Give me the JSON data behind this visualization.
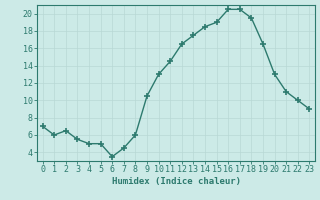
{
  "x": [
    0,
    1,
    2,
    3,
    4,
    5,
    6,
    7,
    8,
    9,
    10,
    11,
    12,
    13,
    14,
    15,
    16,
    17,
    18,
    19,
    20,
    21,
    22,
    23
  ],
  "y": [
    7,
    6,
    6.5,
    5.5,
    5,
    5,
    3.5,
    4.5,
    6,
    10.5,
    13,
    14.5,
    16.5,
    17.5,
    18.5,
    19,
    20.5,
    20.5,
    19.5,
    16.5,
    13,
    11,
    10,
    9
  ],
  "line_color": "#2d7a6e",
  "marker": "+",
  "marker_size": 4,
  "marker_lw": 1.2,
  "line_width": 1.0,
  "bg_color": "#cceae7",
  "grid_color": "#b8d8d5",
  "xlabel": "Humidex (Indice chaleur)",
  "xlim": [
    -0.5,
    23.5
  ],
  "ylim": [
    3,
    21
  ],
  "yticks": [
    4,
    6,
    8,
    10,
    12,
    14,
    16,
    18,
    20
  ],
  "xticks": [
    0,
    1,
    2,
    3,
    4,
    5,
    6,
    7,
    8,
    9,
    10,
    11,
    12,
    13,
    14,
    15,
    16,
    17,
    18,
    19,
    20,
    21,
    22,
    23
  ],
  "label_fontsize": 6.5,
  "tick_fontsize": 6.0
}
